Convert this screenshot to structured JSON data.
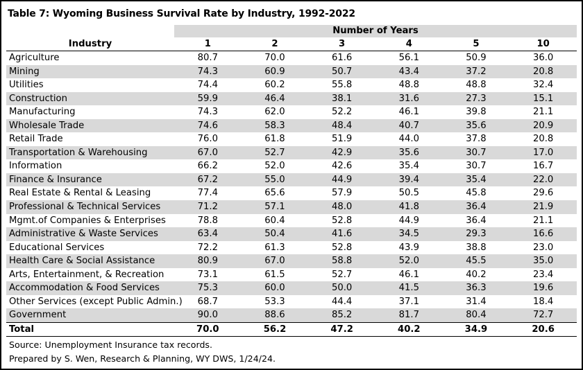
{
  "title": "Table 7: Wyoming Business Survival Rate by Industry, 1992-2022",
  "group_header": "Number of Years",
  "column_header": "Industry",
  "years": [
    "1",
    "2",
    "3",
    "4",
    "5",
    "10"
  ],
  "rows": [
    {
      "industry": "Agriculture",
      "values": [
        "80.7",
        "70.0",
        "61.6",
        "56.1",
        "50.9",
        "36.0"
      ]
    },
    {
      "industry": "Mining",
      "values": [
        "74.3",
        "60.9",
        "50.7",
        "43.4",
        "37.2",
        "20.8"
      ]
    },
    {
      "industry": "Utilities",
      "values": [
        "74.4",
        "60.2",
        "55.8",
        "48.8",
        "48.8",
        "32.4"
      ]
    },
    {
      "industry": "Construction",
      "values": [
        "59.9",
        "46.4",
        "38.1",
        "31.6",
        "27.3",
        "15.1"
      ]
    },
    {
      "industry": "Manufacturing",
      "values": [
        "74.3",
        "62.0",
        "52.2",
        "46.1",
        "39.8",
        "21.1"
      ]
    },
    {
      "industry": "Wholesale Trade",
      "values": [
        "74.6",
        "58.3",
        "48.4",
        "40.7",
        "35.6",
        "20.9"
      ]
    },
    {
      "industry": "Retail Trade",
      "values": [
        "76.0",
        "61.8",
        "51.9",
        "44.0",
        "37.8",
        "20.8"
      ]
    },
    {
      "industry": "Transportation & Warehousing",
      "values": [
        "67.0",
        "52.7",
        "42.9",
        "35.6",
        "30.7",
        "17.0"
      ]
    },
    {
      "industry": "Information",
      "values": [
        "66.2",
        "52.0",
        "42.6",
        "35.4",
        "30.7",
        "16.7"
      ]
    },
    {
      "industry": "Finance & Insurance",
      "values": [
        "67.2",
        "55.0",
        "44.9",
        "39.4",
        "35.4",
        "22.0"
      ]
    },
    {
      "industry": "Real Estate & Rental & Leasing",
      "values": [
        "77.4",
        "65.6",
        "57.9",
        "50.5",
        "45.8",
        "29.6"
      ]
    },
    {
      "industry": "Professional & Technical Services",
      "values": [
        "71.2",
        "57.1",
        "48.0",
        "41.8",
        "36.4",
        "21.9"
      ]
    },
    {
      "industry": "Mgmt.of Companies & Enterprises",
      "values": [
        "78.8",
        "60.4",
        "52.8",
        "44.9",
        "36.4",
        "21.1"
      ]
    },
    {
      "industry": "Administrative & Waste Services",
      "values": [
        "63.4",
        "50.4",
        "41.6",
        "34.5",
        "29.3",
        "16.6"
      ]
    },
    {
      "industry": "Educational Services",
      "values": [
        "72.2",
        "61.3",
        "52.8",
        "43.9",
        "38.8",
        "23.0"
      ]
    },
    {
      "industry": "Health Care & Social Assistance",
      "values": [
        "80.9",
        "67.0",
        "58.8",
        "52.0",
        "45.5",
        "35.0"
      ]
    },
    {
      "industry": "Arts, Entertainment, & Recreation",
      "values": [
        "73.1",
        "61.5",
        "52.7",
        "46.1",
        "40.2",
        "23.4"
      ]
    },
    {
      "industry": "Accommodation & Food Services",
      "values": [
        "75.3",
        "60.0",
        "50.0",
        "41.5",
        "36.3",
        "19.6"
      ]
    },
    {
      "industry": "Other Services (except Public Admin.)",
      "values": [
        "68.7",
        "53.3",
        "44.4",
        "37.1",
        "31.4",
        "18.4"
      ]
    },
    {
      "industry": "Government",
      "values": [
        "90.0",
        "88.6",
        "85.2",
        "81.7",
        "80.4",
        "72.7"
      ]
    }
  ],
  "total": {
    "label": "Total",
    "values": [
      "70.0",
      "56.2",
      "47.2",
      "40.2",
      "34.9",
      "20.6"
    ]
  },
  "source": "Source: Unemployment Insurance tax records.",
  "prepared_by": "Prepared by S. Wen, Research & Planning, WY DWS, 1/24/24.",
  "colors": {
    "shade": "#d9d9d9",
    "border": "#000000"
  }
}
